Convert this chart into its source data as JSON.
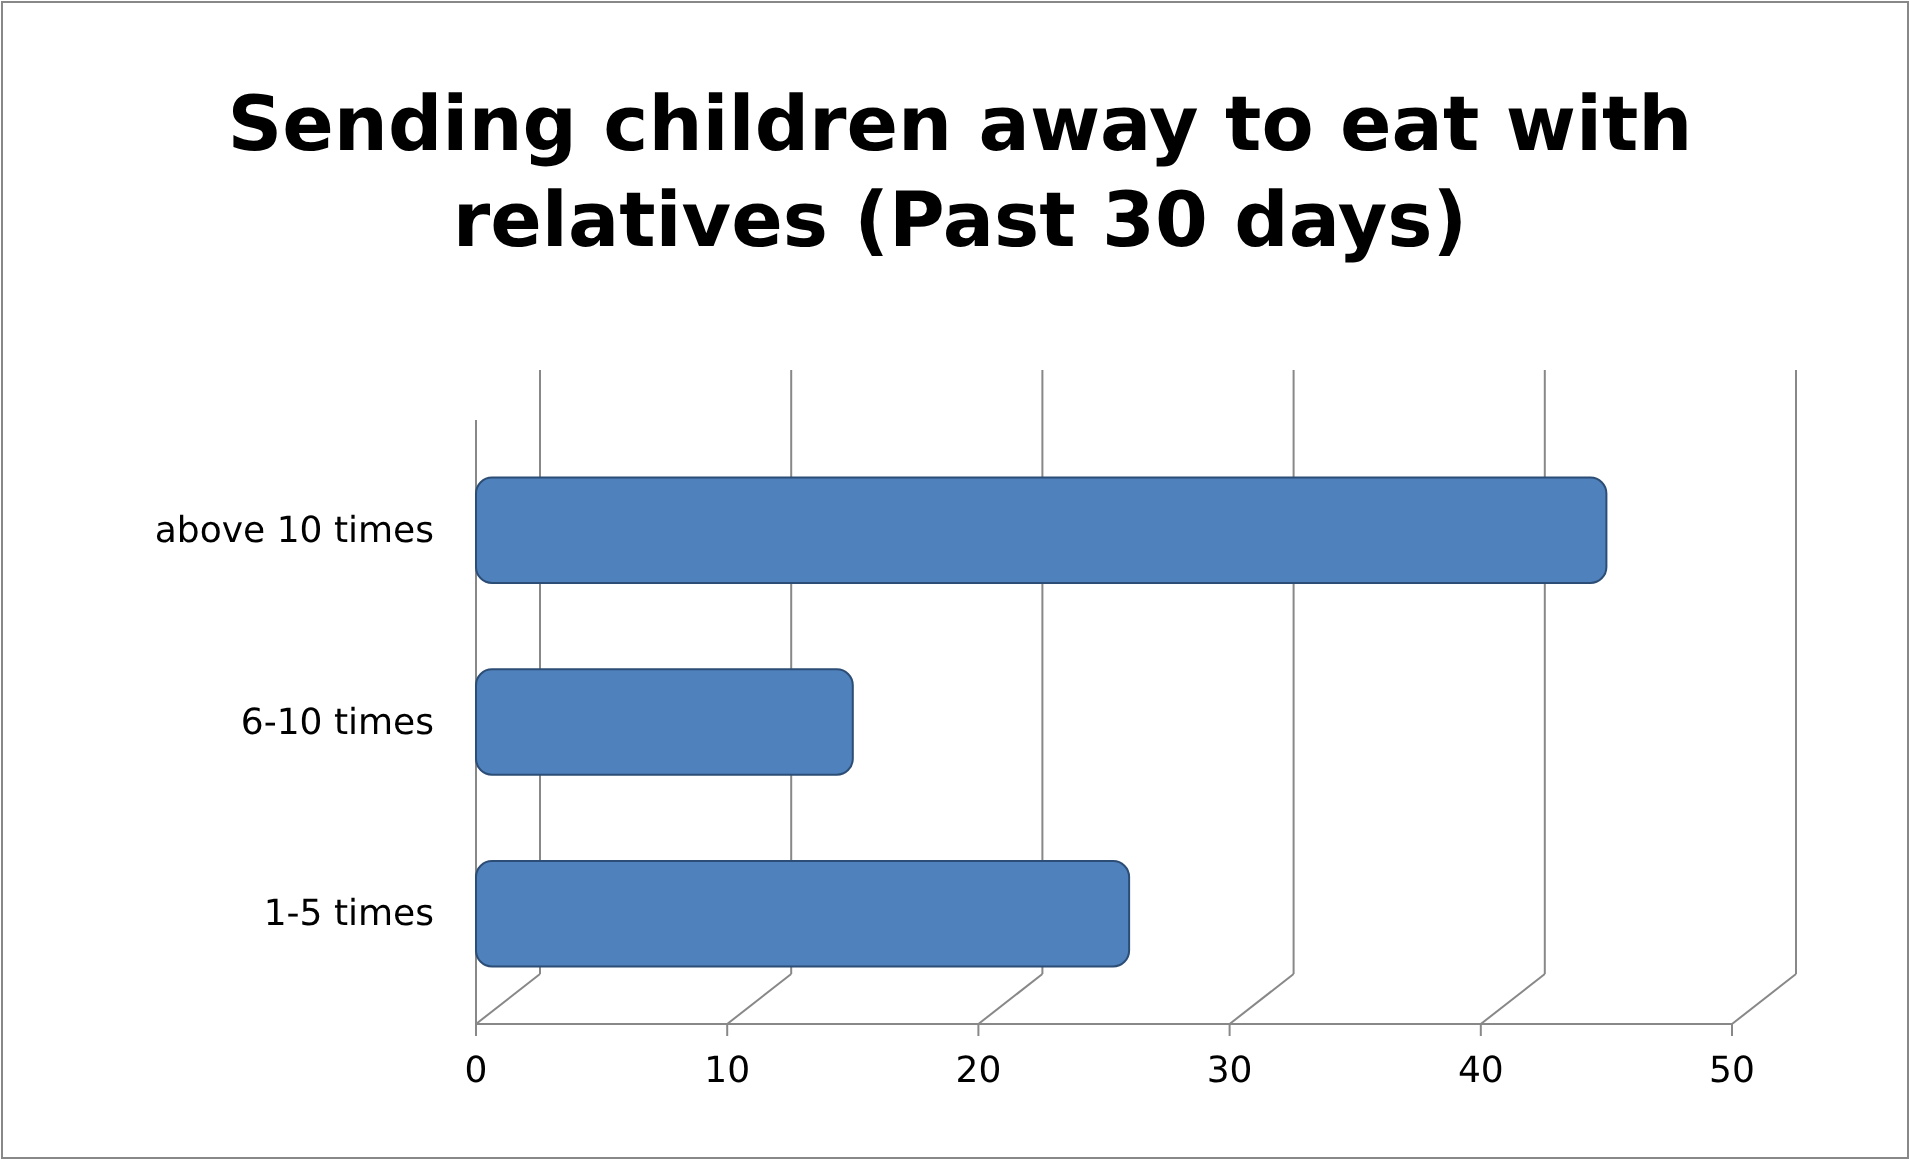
{
  "chart_data": {
    "type": "bar",
    "orientation": "horizontal",
    "title": "Sending children away to eat with relatives (Past 30 days)",
    "categories": [
      "above 10 times",
      "6-10 times",
      "1-5 times"
    ],
    "values": [
      45,
      15,
      26
    ],
    "color": "#4f81bd",
    "xlim": [
      0,
      50
    ],
    "xticks": [
      0,
      10,
      20,
      30,
      40,
      50
    ],
    "grid": "x"
  }
}
